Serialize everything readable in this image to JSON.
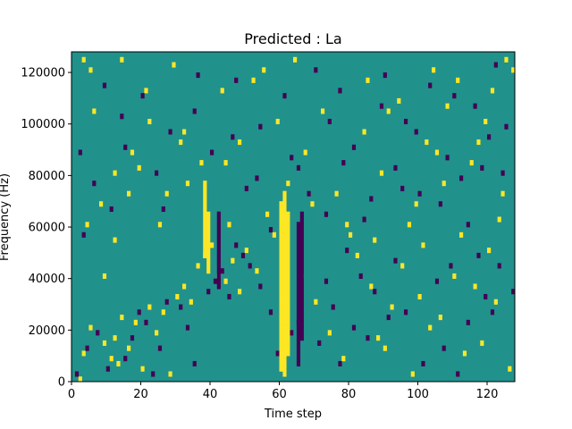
{
  "chart_data": {
    "type": "heatmap",
    "title": "Predicted : La",
    "xlabel": "Time step",
    "ylabel": "Frequency (Hz)",
    "xlim": [
      0,
      128
    ],
    "ylim": [
      0,
      128000
    ],
    "xticks": [
      0,
      20,
      40,
      60,
      80,
      100,
      120
    ],
    "yticks": [
      0,
      20000,
      40000,
      60000,
      80000,
      100000,
      120000
    ],
    "n_time_steps": 128,
    "n_frequency_bins": 64,
    "value_levels": [
      -1,
      0,
      1
    ],
    "colors": {
      "low": "#440154",
      "mid": "#21918c",
      "high": "#fde725"
    },
    "background_value": 0,
    "grid": false,
    "high_cells": [
      [
        2,
        0
      ],
      [
        3,
        5
      ],
      [
        5,
        10
      ],
      [
        9,
        7
      ],
      [
        11,
        4
      ],
      [
        12,
        8
      ],
      [
        13,
        3
      ],
      [
        14,
        12
      ],
      [
        16,
        6
      ],
      [
        18,
        11
      ],
      [
        20,
        2
      ],
      [
        22,
        14
      ],
      [
        24,
        9
      ],
      [
        26,
        13
      ],
      [
        28,
        1
      ],
      [
        30,
        16
      ],
      [
        32,
        18
      ],
      [
        34,
        15
      ],
      [
        36,
        22
      ],
      [
        38,
        24
      ],
      [
        40,
        26
      ],
      [
        42,
        20
      ],
      [
        44,
        19
      ],
      [
        46,
        23
      ],
      [
        48,
        17
      ],
      [
        50,
        25
      ],
      [
        53,
        21
      ],
      [
        58,
        28
      ],
      [
        60,
        12
      ],
      [
        66,
        20
      ],
      [
        70,
        15
      ],
      [
        74,
        9
      ],
      [
        78,
        4
      ],
      [
        82,
        24
      ],
      [
        86,
        18
      ],
      [
        88,
        8
      ],
      [
        90,
        6
      ],
      [
        92,
        14
      ],
      [
        95,
        22
      ],
      [
        98,
        1
      ],
      [
        100,
        16
      ],
      [
        103,
        10
      ],
      [
        106,
        12
      ],
      [
        110,
        20
      ],
      [
        113,
        5
      ],
      [
        116,
        18
      ],
      [
        118,
        7
      ],
      [
        120,
        25
      ],
      [
        122,
        15
      ],
      [
        126,
        2
      ],
      [
        4,
        30
      ],
      [
        8,
        34
      ],
      [
        12,
        40
      ],
      [
        17,
        44
      ],
      [
        22,
        50
      ],
      [
        27,
        36
      ],
      [
        32,
        48
      ],
      [
        37,
        42
      ],
      [
        43,
        56
      ],
      [
        48,
        46
      ],
      [
        52,
        58
      ],
      [
        56,
        32
      ],
      [
        62,
        38
      ],
      [
        67,
        44
      ],
      [
        72,
        52
      ],
      [
        76,
        36
      ],
      [
        80,
        28
      ],
      [
        84,
        48
      ],
      [
        89,
        40
      ],
      [
        94,
        54
      ],
      [
        99,
        34
      ],
      [
        102,
        46
      ],
      [
        107,
        38
      ],
      [
        111,
        58
      ],
      [
        115,
        42
      ],
      [
        119,
        50
      ],
      [
        124,
        36
      ],
      [
        5,
        60
      ],
      [
        14,
        62
      ],
      [
        21,
        56
      ],
      [
        29,
        61
      ],
      [
        55,
        60
      ],
      [
        64,
        62
      ],
      [
        85,
        58
      ],
      [
        91,
        52
      ],
      [
        104,
        60
      ],
      [
        121,
        56
      ],
      [
        125,
        62
      ],
      [
        127,
        60
      ],
      [
        3,
        62
      ],
      [
        12,
        27
      ],
      [
        25,
        30
      ],
      [
        45,
        30
      ],
      [
        87,
        27
      ],
      [
        97,
        30
      ],
      [
        112,
        28
      ],
      [
        123,
        31
      ],
      [
        6,
        52
      ],
      [
        9,
        20
      ],
      [
        16,
        36
      ],
      [
        19,
        41
      ],
      [
        31,
        46
      ],
      [
        33,
        38
      ],
      [
        44,
        42
      ],
      [
        59,
        50
      ],
      [
        69,
        34
      ],
      [
        79,
        30
      ],
      [
        101,
        26
      ],
      [
        105,
        44
      ],
      [
        108,
        53
      ],
      [
        117,
        46
      ]
    ],
    "low_cells": [
      [
        1,
        1
      ],
      [
        4,
        6
      ],
      [
        7,
        9
      ],
      [
        10,
        2
      ],
      [
        15,
        4
      ],
      [
        17,
        8
      ],
      [
        19,
        13
      ],
      [
        21,
        11
      ],
      [
        23,
        1
      ],
      [
        25,
        6
      ],
      [
        27,
        15
      ],
      [
        31,
        14
      ],
      [
        33,
        10
      ],
      [
        35,
        3
      ],
      [
        39,
        17
      ],
      [
        41,
        19
      ],
      [
        43,
        21
      ],
      [
        45,
        16
      ],
      [
        47,
        26
      ],
      [
        49,
        24
      ],
      [
        51,
        22
      ],
      [
        54,
        18
      ],
      [
        57,
        13
      ],
      [
        59,
        5
      ],
      [
        63,
        9
      ],
      [
        65,
        11
      ],
      [
        71,
        7
      ],
      [
        73,
        19
      ],
      [
        75,
        14
      ],
      [
        77,
        3
      ],
      [
        79,
        25
      ],
      [
        81,
        10
      ],
      [
        83,
        20
      ],
      [
        85,
        8
      ],
      [
        87,
        17
      ],
      [
        91,
        12
      ],
      [
        93,
        23
      ],
      [
        96,
        13
      ],
      [
        101,
        3
      ],
      [
        105,
        19
      ],
      [
        107,
        6
      ],
      [
        109,
        22
      ],
      [
        111,
        1
      ],
      [
        114,
        11
      ],
      [
        117,
        24
      ],
      [
        119,
        16
      ],
      [
        121,
        13
      ],
      [
        123,
        22
      ],
      [
        127,
        17
      ],
      [
        3,
        28
      ],
      [
        6,
        38
      ],
      [
        11,
        33
      ],
      [
        15,
        45
      ],
      [
        20,
        55
      ],
      [
        24,
        40
      ],
      [
        28,
        48
      ],
      [
        35,
        52
      ],
      [
        40,
        44
      ],
      [
        47,
        58
      ],
      [
        50,
        37
      ],
      [
        54,
        49
      ],
      [
        61,
        55
      ],
      [
        65,
        41
      ],
      [
        70,
        60
      ],
      [
        73,
        32
      ],
      [
        77,
        56
      ],
      [
        81,
        45
      ],
      [
        86,
        35
      ],
      [
        90,
        59
      ],
      [
        93,
        41
      ],
      [
        96,
        50
      ],
      [
        100,
        36
      ],
      [
        103,
        57
      ],
      [
        108,
        43
      ],
      [
        112,
        39
      ],
      [
        116,
        53
      ],
      [
        120,
        47
      ],
      [
        124,
        40
      ],
      [
        2,
        44
      ],
      [
        9,
        57
      ],
      [
        14,
        51
      ],
      [
        26,
        33
      ],
      [
        36,
        59
      ],
      [
        46,
        47
      ],
      [
        53,
        39
      ],
      [
        57,
        29
      ],
      [
        63,
        43
      ],
      [
        68,
        36
      ],
      [
        74,
        50
      ],
      [
        78,
        42
      ],
      [
        84,
        31
      ],
      [
        89,
        53
      ],
      [
        95,
        37
      ],
      [
        99,
        48
      ],
      [
        106,
        34
      ],
      [
        110,
        55
      ],
      [
        114,
        30
      ],
      [
        118,
        41
      ],
      [
        122,
        61
      ],
      [
        125,
        49
      ]
    ],
    "high_bands": [
      {
        "x": 38,
        "y_bins": [
          24,
          25,
          26,
          27,
          28,
          29,
          30,
          31,
          32,
          33,
          34,
          35,
          36,
          37,
          38
        ]
      },
      {
        "x": 39,
        "y_bins": [
          21,
          22,
          23,
          24,
          25,
          26,
          27,
          28,
          29,
          30,
          31,
          32
        ]
      },
      {
        "x": 60,
        "y_bins": [
          2,
          3,
          4,
          5,
          6,
          7,
          8,
          9,
          10,
          11,
          12,
          13,
          14,
          15,
          16,
          17,
          18,
          19,
          20,
          21,
          22,
          23,
          24,
          25,
          26,
          27,
          28,
          29,
          30,
          31,
          32,
          33,
          34
        ]
      },
      {
        "x": 61,
        "y_bins": [
          1,
          2,
          3,
          4,
          5,
          6,
          7,
          8,
          9,
          10,
          11,
          12,
          13,
          14,
          15,
          16,
          17,
          18,
          19,
          20,
          21,
          22,
          23,
          24,
          25,
          26,
          27,
          28,
          29,
          30,
          31,
          32,
          33,
          34,
          35,
          36
        ]
      },
      {
        "x": 62,
        "y_bins": [
          5,
          6,
          7,
          8,
          9,
          10,
          11,
          12,
          13,
          14,
          15,
          16,
          17,
          18,
          19,
          20,
          21,
          22,
          23,
          24,
          25,
          26,
          27,
          28,
          29,
          30,
          31,
          32
        ]
      }
    ],
    "low_bands": [
      {
        "x": 42,
        "y_bins": [
          18,
          19,
          20,
          21,
          22,
          23,
          24,
          25,
          26,
          27,
          28,
          29,
          30,
          31,
          32
        ]
      },
      {
        "x": 65,
        "y_bins": [
          3,
          4,
          5,
          6,
          7,
          8,
          9,
          10,
          11,
          12,
          13,
          14,
          15,
          16,
          17,
          18,
          19,
          20,
          21,
          22,
          23,
          24,
          25,
          26,
          27,
          28,
          29,
          30
        ]
      },
      {
        "x": 66,
        "y_bins": [
          8,
          9,
          10,
          11,
          12,
          13,
          14,
          15,
          16,
          17,
          18,
          19,
          20,
          21,
          22,
          23,
          24,
          25,
          26,
          27,
          28,
          29,
          30,
          31,
          32
        ]
      }
    ]
  }
}
